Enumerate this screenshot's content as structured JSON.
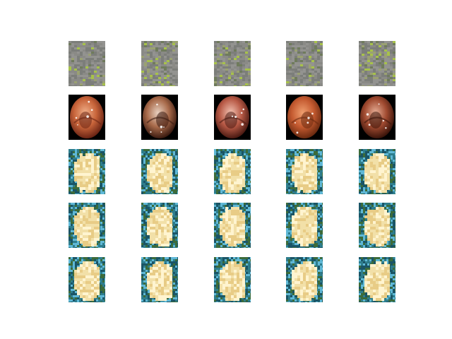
{
  "figure": {
    "background": "#ffffff",
    "rows": [
      {
        "kind": "noise",
        "colors": [
          "#8a8a86",
          "#939390",
          "#7c7e7a",
          "#9aa172",
          "#a7c24a",
          "#6f7b5c"
        ]
      },
      {
        "kind": "endoscopy",
        "images": [
          {
            "tone": "#c8643a",
            "light": "#f0b08a",
            "dark": "#6a2414"
          },
          {
            "tone": "#a86a4a",
            "light": "#e8d0c0",
            "dark": "#3a1a10"
          },
          {
            "tone": "#b85a46",
            "light": "#f2c2b2",
            "dark": "#4a1a12"
          },
          {
            "tone": "#c45a30",
            "light": "#f0a070",
            "dark": "#6a2a10"
          },
          {
            "tone": "#a04a30",
            "light": "#e8b098",
            "dark": "#3a140a"
          }
        ]
      },
      {
        "kind": "generated",
        "colors": [
          "#f2e0a8",
          "#e8cc86",
          "#fff4d0",
          "#2e7d8c",
          "#1a5566",
          "#5fb8d6",
          "#3c6b3a"
        ]
      },
      {
        "kind": "generated",
        "colors": [
          "#f2e0a8",
          "#e8cc86",
          "#fff4d0",
          "#2e7d8c",
          "#1a5566",
          "#5fb8d6",
          "#3c6b3a"
        ]
      },
      {
        "kind": "generated",
        "colors": [
          "#f2e0a8",
          "#e8cc86",
          "#fff4d0",
          "#2e7d8c",
          "#1a5566",
          "#5fb8d6",
          "#3c6b3a"
        ]
      }
    ]
  }
}
